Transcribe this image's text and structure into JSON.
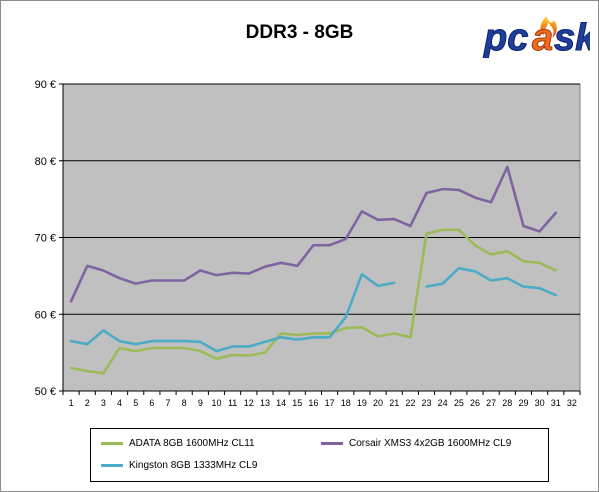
{
  "chart_data": {
    "type": "line",
    "title": "DDR3 - 8GB",
    "x": [
      1,
      2,
      3,
      4,
      5,
      6,
      7,
      8,
      9,
      10,
      11,
      12,
      13,
      14,
      15,
      16,
      17,
      18,
      19,
      20,
      21,
      22,
      23,
      24,
      25,
      26,
      27,
      28,
      29,
      30,
      31,
      32
    ],
    "ylim": [
      50,
      90
    ],
    "yticks": [
      50,
      60,
      70,
      80,
      90
    ],
    "ytick_labels": [
      "50 €",
      "60 €",
      "70 €",
      "80 €",
      "90 €"
    ],
    "xlabel": "",
    "ylabel": "",
    "grid": true,
    "legend_position": "bottom",
    "series": [
      {
        "name": "ADATA 8GB 1600MHz CL11",
        "color": "#9bbb59",
        "values": [
          53.0,
          52.6,
          52.3,
          55.6,
          55.2,
          55.6,
          55.6,
          55.6,
          55.2,
          54.2,
          54.7,
          54.6,
          55.0,
          57.5,
          57.3,
          57.5,
          57.5,
          58.2,
          58.3,
          57.1,
          57.5,
          57.0,
          70.5,
          71.0,
          71.0,
          69.0,
          67.8,
          68.2,
          66.9,
          66.7,
          65.7,
          null
        ]
      },
      {
        "name": "Corsair XMS3 4x2GB 1600MHz CL9",
        "color": "#8064a2",
        "values": [
          61.7,
          66.3,
          65.7,
          64.7,
          64.0,
          64.4,
          64.4,
          64.4,
          65.7,
          65.1,
          65.4,
          65.3,
          66.2,
          66.7,
          66.3,
          69.0,
          69.0,
          69.8,
          73.4,
          72.3,
          72.4,
          71.5,
          75.8,
          76.3,
          76.2,
          75.2,
          74.6,
          79.2,
          71.5,
          70.8,
          73.2,
          null
        ]
      },
      {
        "name": "Kingston 8GB 1333MHz CL9",
        "color": "#4bacc6",
        "values": [
          56.5,
          56.1,
          57.9,
          56.5,
          56.1,
          56.5,
          56.5,
          56.5,
          56.4,
          55.2,
          55.8,
          55.8,
          56.4,
          57.0,
          56.7,
          57.0,
          57.0,
          59.6,
          65.2,
          63.7,
          64.1,
          null,
          63.6,
          64.0,
          66.0,
          65.6,
          64.4,
          64.7,
          63.6,
          63.4,
          62.5,
          null
        ]
      }
    ]
  }
}
